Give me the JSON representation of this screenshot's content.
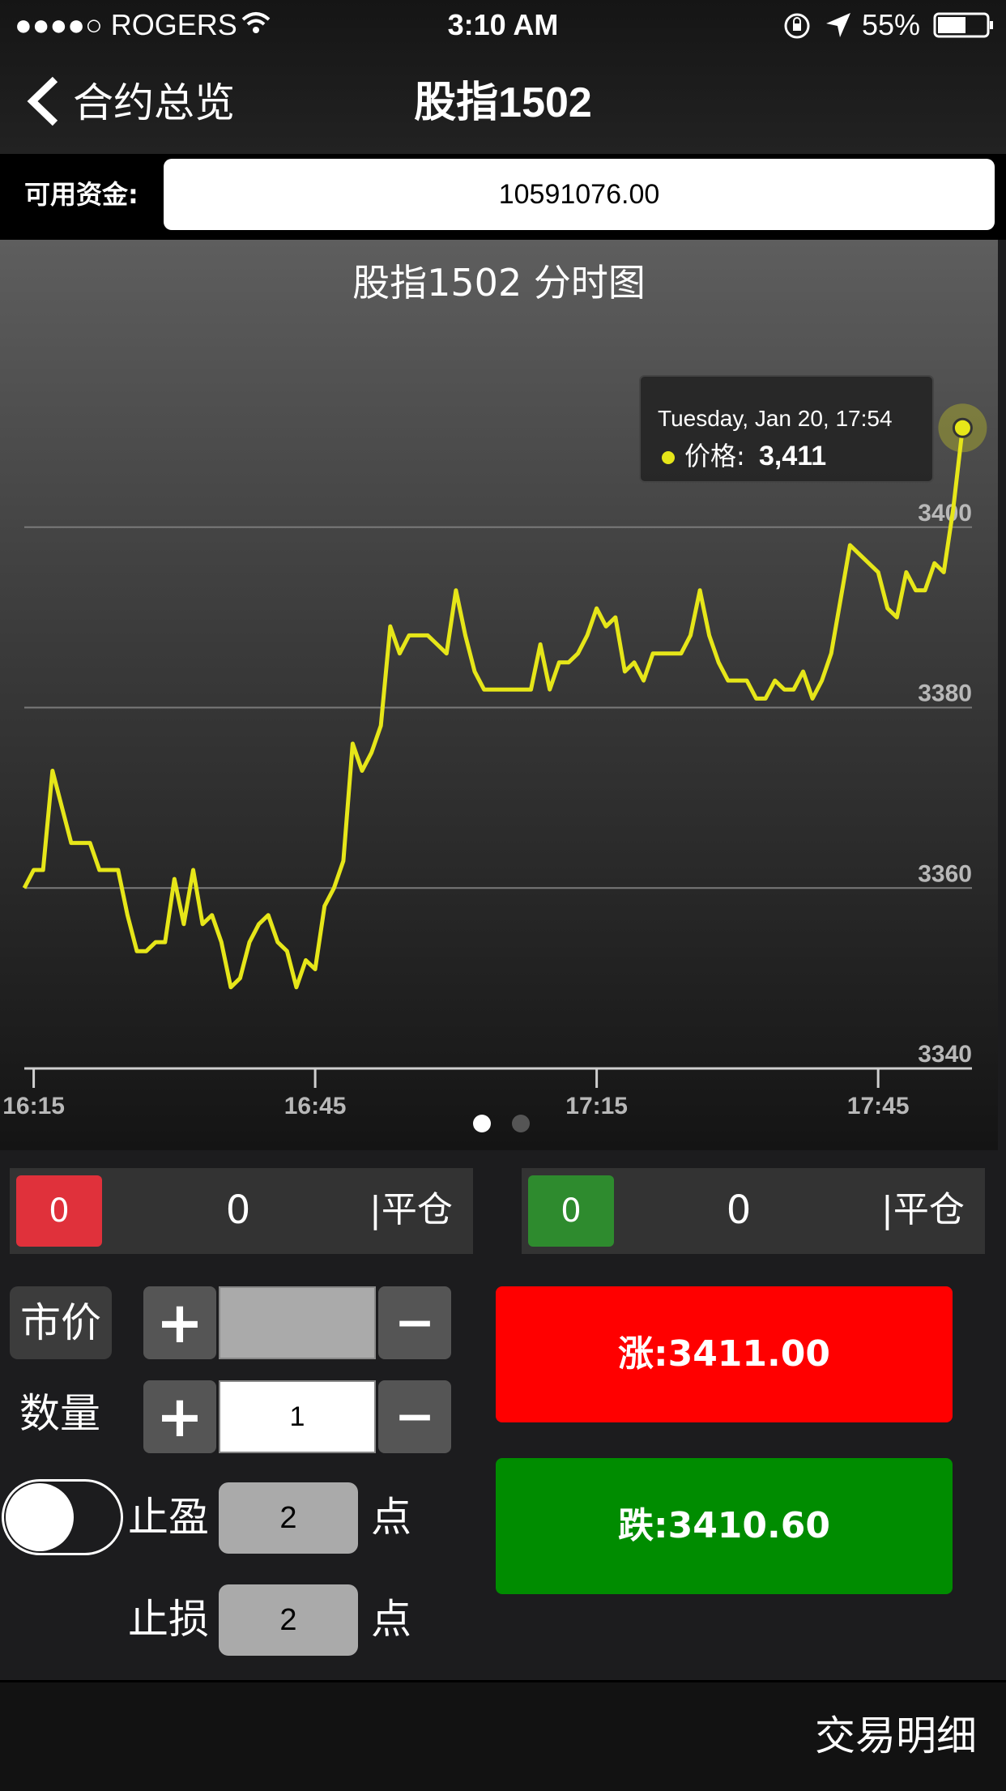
{
  "status_bar": {
    "carrier": "●●●●○ ROGERS",
    "time": "3:10 AM",
    "battery": "55%"
  },
  "nav": {
    "back_label": "合约总览",
    "title": "股指1502"
  },
  "funds": {
    "label": "可用资金:",
    "value": "10591076.00"
  },
  "chart_data": {
    "type": "line",
    "title": "股指1502 分时图",
    "x_ticks": [
      "16:15",
      "16:45",
      "17:15",
      "17:45"
    ],
    "y_ticks": [
      "3340",
      "3360",
      "3380",
      "3400"
    ],
    "ylim": [
      3340,
      3420
    ],
    "grid": true,
    "series": [
      {
        "name": "价格",
        "color": "#e6e619",
        "points": [
          [
            "16:14",
            3360
          ],
          [
            "16:15",
            3362
          ],
          [
            "16:16",
            3362
          ],
          [
            "16:17",
            3373
          ],
          [
            "16:18",
            3369
          ],
          [
            "16:19",
            3365
          ],
          [
            "16:20",
            3365
          ],
          [
            "16:21",
            3365
          ],
          [
            "16:22",
            3362
          ],
          [
            "16:23",
            3362
          ],
          [
            "16:24",
            3362
          ],
          [
            "16:25",
            3357
          ],
          [
            "16:26",
            3353
          ],
          [
            "16:27",
            3353
          ],
          [
            "16:28",
            3354
          ],
          [
            "16:29",
            3354
          ],
          [
            "16:30",
            3361
          ],
          [
            "16:31",
            3356
          ],
          [
            "16:32",
            3362
          ],
          [
            "16:33",
            3356
          ],
          [
            "16:34",
            3357
          ],
          [
            "16:35",
            3354
          ],
          [
            "16:36",
            3349
          ],
          [
            "16:37",
            3350
          ],
          [
            "16:38",
            3354
          ],
          [
            "16:39",
            3356
          ],
          [
            "16:40",
            3357
          ],
          [
            "16:41",
            3354
          ],
          [
            "16:42",
            3353
          ],
          [
            "16:43",
            3349
          ],
          [
            "16:44",
            3352
          ],
          [
            "16:45",
            3351
          ],
          [
            "16:46",
            3358
          ],
          [
            "16:47",
            3360
          ],
          [
            "16:48",
            3363
          ],
          [
            "16:49",
            3376
          ],
          [
            "16:50",
            3373
          ],
          [
            "16:51",
            3375
          ],
          [
            "16:52",
            3378
          ],
          [
            "16:53",
            3389
          ],
          [
            "16:54",
            3386
          ],
          [
            "16:55",
            3388
          ],
          [
            "16:56",
            3388
          ],
          [
            "16:57",
            3388
          ],
          [
            "16:58",
            3387
          ],
          [
            "16:59",
            3386
          ],
          [
            "17:00",
            3393
          ],
          [
            "17:01",
            3388
          ],
          [
            "17:02",
            3384
          ],
          [
            "17:03",
            3382
          ],
          [
            "17:04",
            3382
          ],
          [
            "17:05",
            3382
          ],
          [
            "17:06",
            3382
          ],
          [
            "17:07",
            3382
          ],
          [
            "17:08",
            3382
          ],
          [
            "17:09",
            3387
          ],
          [
            "17:10",
            3382
          ],
          [
            "17:11",
            3385
          ],
          [
            "17:12",
            3385
          ],
          [
            "17:13",
            3386
          ],
          [
            "17:14",
            3388
          ],
          [
            "17:15",
            3391
          ],
          [
            "17:16",
            3389
          ],
          [
            "17:17",
            3390
          ],
          [
            "17:18",
            3384
          ],
          [
            "17:19",
            3385
          ],
          [
            "17:20",
            3383
          ],
          [
            "17:21",
            3386
          ],
          [
            "17:22",
            3386
          ],
          [
            "17:23",
            3386
          ],
          [
            "17:24",
            3386
          ],
          [
            "17:25",
            3388
          ],
          [
            "17:26",
            3393
          ],
          [
            "17:27",
            3388
          ],
          [
            "17:28",
            3385
          ],
          [
            "17:29",
            3383
          ],
          [
            "17:30",
            3383
          ],
          [
            "17:31",
            3383
          ],
          [
            "17:32",
            3381
          ],
          [
            "17:33",
            3381
          ],
          [
            "17:34",
            3383
          ],
          [
            "17:35",
            3382
          ],
          [
            "17:36",
            3382
          ],
          [
            "17:37",
            3384
          ],
          [
            "17:38",
            3381
          ],
          [
            "17:39",
            3383
          ],
          [
            "17:40",
            3386
          ],
          [
            "17:41",
            3392
          ],
          [
            "17:42",
            3398
          ],
          [
            "17:43",
            3397
          ],
          [
            "17:44",
            3396
          ],
          [
            "17:45",
            3395
          ],
          [
            "17:46",
            3391
          ],
          [
            "17:47",
            3390
          ],
          [
            "17:48",
            3395
          ],
          [
            "17:49",
            3393
          ],
          [
            "17:50",
            3393
          ],
          [
            "17:51",
            3396
          ],
          [
            "17:52",
            3395
          ],
          [
            "17:53",
            3402
          ],
          [
            "17:54",
            3411
          ]
        ]
      }
    ],
    "tooltip": {
      "date": "Tuesday, Jan 20, 17:54",
      "label": "价格:",
      "value": "3,411"
    },
    "page_dots": 2,
    "active_page": 0
  },
  "positions": {
    "long": {
      "badge": "0",
      "count": "0",
      "close": "|平仓",
      "color": "#e0313b"
    },
    "short": {
      "badge": "0",
      "count": "0",
      "close": "|平仓",
      "color": "#2e8b2e"
    }
  },
  "order": {
    "price_type": "市价",
    "price_value": "",
    "quantity_label": "数量",
    "quantity_value": "1",
    "plus": "+",
    "minus": "−",
    "take_profit_label": "止盈",
    "take_profit_value": "2",
    "stop_loss_label": "止损",
    "stop_loss_value": "2",
    "points_unit": "点",
    "toggle_on": false
  },
  "trade": {
    "up_label": "涨:3411.00",
    "up_color": "#ff0000",
    "down_label": "跌:3410.60",
    "down_color": "#008c00"
  },
  "footer": {
    "detail_label": "交易明细"
  }
}
